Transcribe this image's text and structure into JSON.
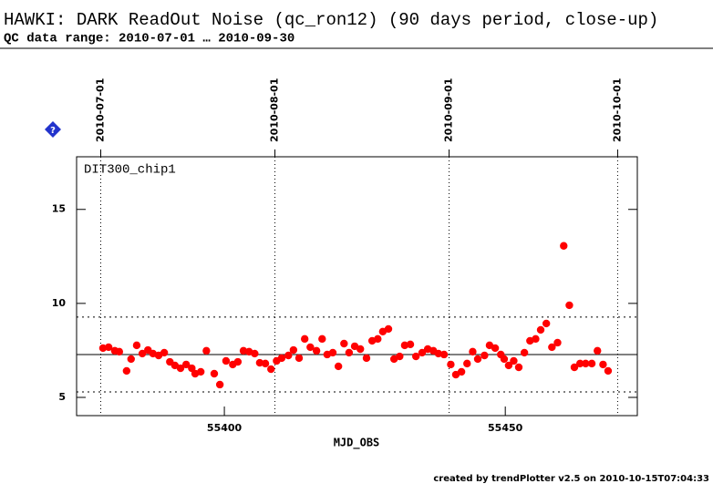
{
  "chart_data": {
    "type": "scatter",
    "title": "HAWKI: DARK ReadOut Noise (qc_ron12) (90 days period, close-up)",
    "subtitle": "QC data range: 2010-07-01 … 2010-09-30",
    "panel_label": "DIT300_chip1",
    "x_label": "MJD_OBS",
    "footer": "created by trendPlotter v2.5 on 2010-10-15T07:04:33",
    "xlim": [
      55373.7,
      55473.5
    ],
    "ylim": [
      4.03,
      17.8
    ],
    "xticks": [
      55400,
      55450
    ],
    "yticks": [
      5,
      10,
      15
    ],
    "x2ticks": [
      {
        "value": 55378,
        "label": "2010-07-01"
      },
      {
        "value": 55409,
        "label": "2010-08-01"
      },
      {
        "value": 55440,
        "label": "2010-09-01"
      },
      {
        "value": 55470,
        "label": "2010-10-01"
      }
    ],
    "mean": 7.28,
    "limits": [
      5.29,
      9.27
    ],
    "series": [
      {
        "color": "#ff0000",
        "x": [
          55378.4,
          55379.4,
          55380.5,
          55381.3,
          55382.6,
          55383.4,
          55384.4,
          55385.4,
          55386.4,
          55387.3,
          55388.3,
          55389.3,
          55390.3,
          55391.2,
          55392.2,
          55393.2,
          55394.2,
          55394.8,
          55395.8,
          55396.8,
          55398.2,
          55399.2,
          55400.3,
          55401.5,
          55402.4,
          55403.4,
          55404.4,
          55405.4,
          55406.3,
          55407.3,
          55408.3,
          55409.3,
          55410.2,
          55411.4,
          55412.3,
          55413.3,
          55414.3,
          55415.3,
          55416.4,
          55417.4,
          55418.3,
          55419.3,
          55420.3,
          55421.3,
          55422.2,
          55423.2,
          55424.2,
          55425.3,
          55426.3,
          55427.3,
          55428.2,
          55429.2,
          55430.2,
          55431.2,
          55432.1,
          55433.1,
          55434.1,
          55435.2,
          55436.2,
          55437.2,
          55438.1,
          55439.1,
          55440.3,
          55441.2,
          55442.2,
          55443.2,
          55444.2,
          55445.1,
          55446.3,
          55447.2,
          55448.2,
          55449.2,
          55449.8,
          55450.6,
          55451.5,
          55452.4,
          55453.4,
          55454.4,
          55455.4,
          55456.3,
          55457.3,
          55458.3,
          55459.3,
          55460.4,
          55461.4,
          55462.3,
          55463.3,
          55464.3,
          55465.4,
          55466.4,
          55467.4,
          55468.3
        ],
        "values": [
          7.62,
          7.67,
          7.48,
          7.43,
          6.41,
          7.04,
          7.77,
          7.33,
          7.52,
          7.33,
          7.23,
          7.38,
          6.89,
          6.7,
          6.55,
          6.75,
          6.55,
          6.26,
          6.36,
          7.48,
          6.26,
          5.68,
          6.94,
          6.75,
          6.89,
          7.48,
          7.43,
          7.33,
          6.84,
          6.8,
          6.5,
          6.94,
          7.09,
          7.23,
          7.52,
          7.09,
          8.11,
          7.67,
          7.48,
          8.11,
          7.28,
          7.38,
          6.65,
          7.86,
          7.38,
          7.72,
          7.57,
          7.09,
          8.01,
          8.11,
          8.5,
          8.64,
          7.04,
          7.18,
          7.77,
          7.82,
          7.18,
          7.38,
          7.57,
          7.48,
          7.33,
          7.28,
          6.75,
          6.21,
          6.36,
          6.8,
          7.43,
          7.04,
          7.23,
          7.77,
          7.62,
          7.28,
          7.04,
          6.7,
          6.94,
          6.6,
          7.38,
          8.01,
          8.11,
          8.59,
          8.93,
          7.67,
          7.91,
          13.06,
          9.9,
          6.6,
          6.8,
          6.8,
          6.8,
          7.48,
          6.75,
          6.41
        ]
      }
    ]
  }
}
